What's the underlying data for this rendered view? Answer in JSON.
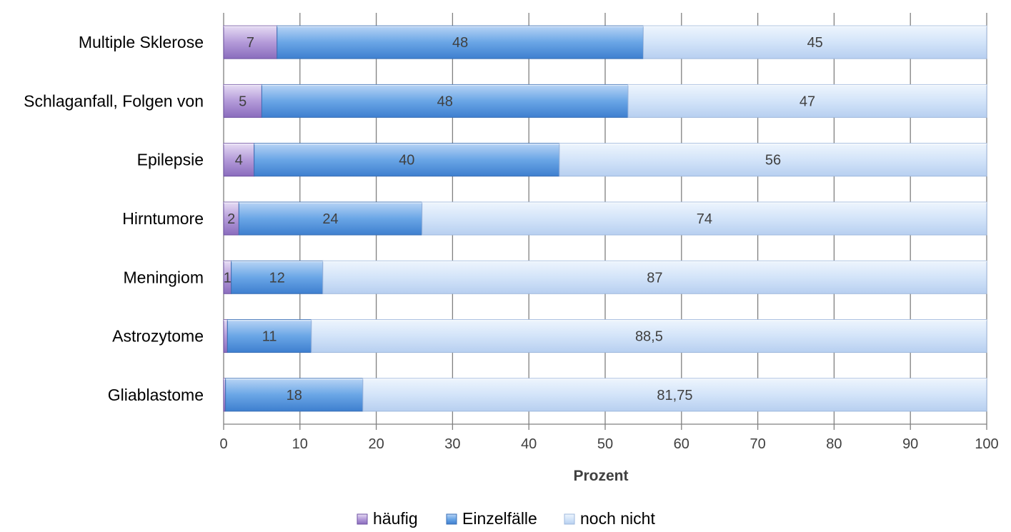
{
  "chart_data": {
    "type": "bar",
    "orientation": "horizontal",
    "stacked": true,
    "categories": [
      "Multiple Sklerose",
      "Schlaganfall, Folgen von",
      "Epilepsie",
      "Hirntumore",
      "Meningiom",
      "Astrozytome",
      "Gliablastome"
    ],
    "series": [
      {
        "name": "häufig",
        "values": [
          7,
          5,
          4,
          2,
          1,
          0.5,
          0.25
        ],
        "labels": [
          "7",
          "5",
          "4",
          "2",
          "1",
          "",
          ""
        ],
        "color": "#a78bd0"
      },
      {
        "name": "Einzelfälle",
        "values": [
          48,
          48,
          40,
          24,
          12,
          11,
          18
        ],
        "labels": [
          "48",
          "48",
          "40",
          "24",
          "12",
          "11",
          "18"
        ],
        "color": "#5b9be0"
      },
      {
        "name": "noch nicht",
        "values": [
          45,
          47,
          56,
          74,
          87,
          88.5,
          81.75
        ],
        "labels": [
          "45",
          "47",
          "56",
          "74",
          "87",
          "88,5",
          "81,75"
        ],
        "color": "#c6dbf7"
      }
    ],
    "xticks": [
      "0",
      "10",
      "20",
      "30",
      "40",
      "50",
      "60",
      "70",
      "80",
      "90",
      "100"
    ],
    "xlim": [
      0,
      100
    ],
    "xlabel": "Prozent",
    "ylabel": "",
    "title": "",
    "grid": true,
    "legend_position": "bottom"
  }
}
